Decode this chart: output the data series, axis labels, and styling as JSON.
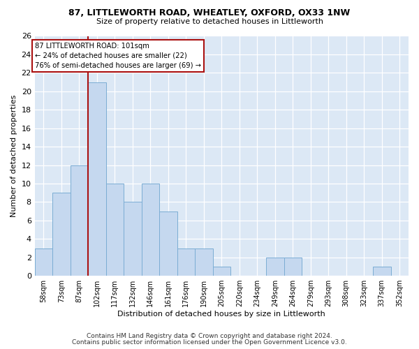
{
  "title1": "87, LITTLEWORTH ROAD, WHEATLEY, OXFORD, OX33 1NW",
  "title2": "Size of property relative to detached houses in Littleworth",
  "xlabel": "Distribution of detached houses by size in Littleworth",
  "ylabel": "Number of detached properties",
  "bin_labels": [
    "58sqm",
    "73sqm",
    "87sqm",
    "102sqm",
    "117sqm",
    "132sqm",
    "146sqm",
    "161sqm",
    "176sqm",
    "190sqm",
    "205sqm",
    "220sqm",
    "234sqm",
    "249sqm",
    "264sqm",
    "279sqm",
    "293sqm",
    "308sqm",
    "323sqm",
    "337sqm",
    "352sqm"
  ],
  "bar_values": [
    3,
    9,
    12,
    21,
    10,
    8,
    10,
    7,
    3,
    3,
    1,
    0,
    0,
    2,
    2,
    0,
    0,
    0,
    0,
    1,
    0
  ],
  "bar_color": "#c5d8ef",
  "bar_edge_color": "#7badd4",
  "subject_line_color": "#aa1111",
  "annotation_line1": "87 LITTLEWORTH ROAD: 101sqm",
  "annotation_line2": "← 24% of detached houses are smaller (22)",
  "annotation_line3": "76% of semi-detached houses are larger (69) →",
  "annotation_box_edgecolor": "#aa1111",
  "ylim_max": 26,
  "ytick_step": 2,
  "footer1": "Contains HM Land Registry data © Crown copyright and database right 2024.",
  "footer2": "Contains public sector information licensed under the Open Government Licence v3.0.",
  "fig_bg_color": "#ffffff",
  "plot_bg_color": "#dce8f5"
}
